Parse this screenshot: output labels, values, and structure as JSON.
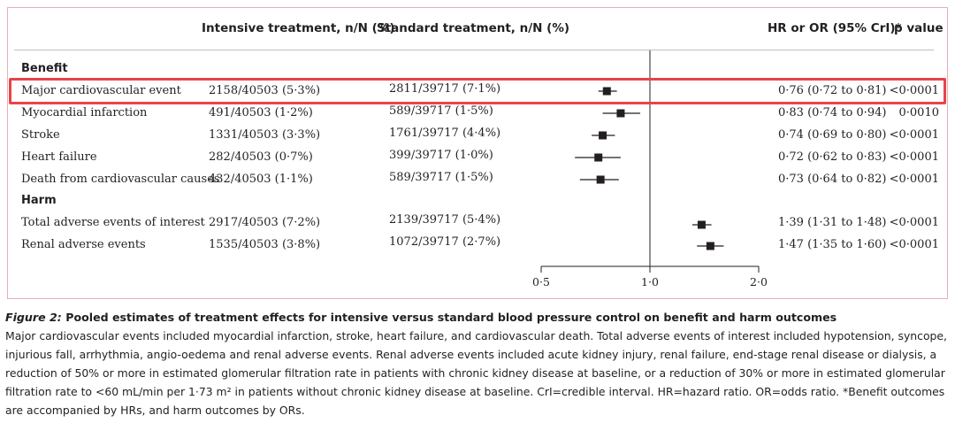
{
  "headers": {
    "intensive": "Intensive treatment, n/N (%)",
    "standard": "Standard treatment, n/N (%)",
    "hr": "HR or OR (95% CrI)*",
    "pvalue": "p value"
  },
  "sections": {
    "benefit": "Benefit",
    "harm": "Harm"
  },
  "rows": [
    {
      "label": "Major cardiovascular event",
      "intensive": "2158/40503 (5·3%)",
      "standard": "2811/39717 (7·1%)",
      "hr_text": "0·76 (0·72 to 0·81)",
      "p": "<0·0001"
    },
    {
      "label": "Myocardial infarction",
      "intensive": "491/40503 (1·2%)",
      "standard": "589/39717 (1·5%)",
      "hr_text": "0·83 (0·74 to 0·94)",
      "p": "0·0010"
    },
    {
      "label": "Stroke",
      "intensive": "1331/40503 (3·3%)",
      "standard": "1761/39717 (4·4%)",
      "hr_text": "0·74 (0·69 to 0·80)",
      "p": "<0·0001"
    },
    {
      "label": "Heart failure",
      "intensive": "282/40503 (0·7%)",
      "standard": "399/39717 (1·0%)",
      "hr_text": "0·72 (0·62 to 0·83)",
      "p": "<0·0001"
    },
    {
      "label": "Death from cardiovascular causes",
      "intensive": "432/40503 (1·1%)",
      "standard": "589/39717 (1·5%)",
      "hr_text": "0·73 (0·64 to 0·82)",
      "p": "<0·0001"
    },
    {
      "label": "Total adverse events of interest",
      "intensive": "2917/40503 (7·2%)",
      "standard": "2139/39717 (5·4%)",
      "hr_text": "1·39 (1·31 to 1·48)",
      "p": "<0·0001"
    },
    {
      "label": "Renal adverse events",
      "intensive": "1535/40503 (3·8%)",
      "standard": "1072/39717 (2·7%)",
      "hr_text": "1·47 (1·35 to 1·60)",
      "p": "<0·0001"
    }
  ],
  "chart_data": {
    "type": "scatter",
    "subtype": "forest-plot",
    "categories": [
      "Major cardiovascular event",
      "Myocardial infarction",
      "Stroke",
      "Heart failure",
      "Death from cardiovascular causes",
      "Total adverse events of interest",
      "Renal adverse events"
    ],
    "estimate": [
      0.76,
      0.83,
      0.74,
      0.72,
      0.73,
      1.39,
      1.47
    ],
    "lower": [
      0.72,
      0.74,
      0.69,
      0.62,
      0.64,
      1.31,
      1.35
    ],
    "upper": [
      0.81,
      0.94,
      0.8,
      0.83,
      0.82,
      1.48,
      1.6
    ],
    "xlim": [
      0.5,
      2.0
    ],
    "x_scale": "log",
    "reference_line": 1.0,
    "xticks": [
      0.5,
      1.0,
      2.0
    ],
    "xtick_labels": [
      "0·5",
      "1·0",
      "2·0"
    ],
    "grid": false
  },
  "highlight_color": "#e8434b",
  "caption": {
    "title_lead": "Figure 2:",
    "title_rest": " Pooled estimates of treatment effects for intensive versus standard blood pressure control on benefit and harm outcomes",
    "body": "Major cardiovascular events included myocardial infarction, stroke, heart failure, and cardiovascular death. Total adverse events of interest included hypotension, syncope, injurious fall, arrhythmia, angio-oedema and renal adverse events. Renal adverse events included acute kidney injury, renal failure, end-stage renal disease or dialysis, a reduction of 50% or more in estimated glomerular filtration rate in patients with chronic kidney disease at baseline, or a reduction of 30% or more in estimated glomerular filtration rate to <60 mL/min per 1·73 m² in patients without chronic kidney disease at baseline. CrI=credible interval. HR=hazard ratio. OR=odds ratio. *Benefit outcomes are accompanied by HRs, and harm outcomes by ORs."
  }
}
